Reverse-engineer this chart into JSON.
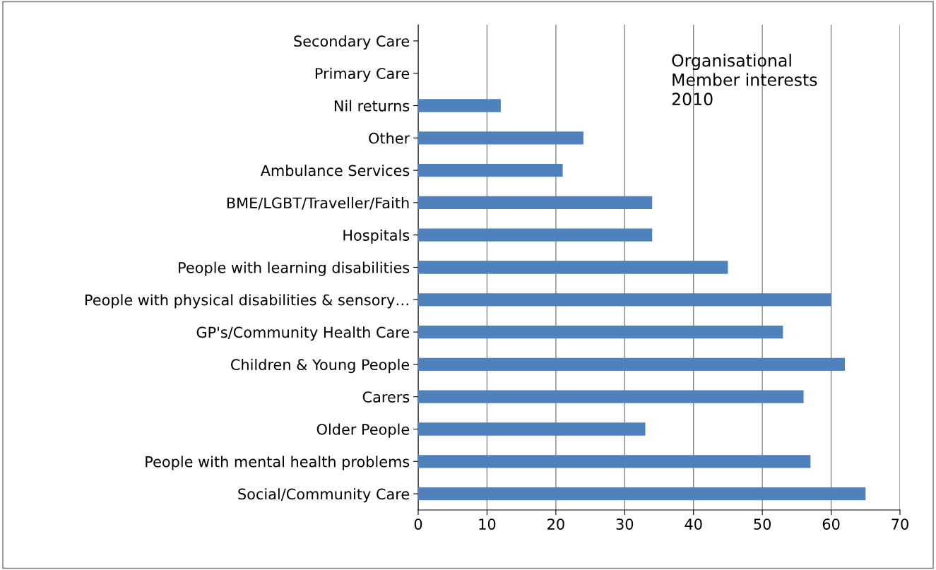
{
  "chart_data": {
    "type": "bar",
    "orientation": "horizontal",
    "categories": [
      "Secondary Care",
      "Primary Care",
      "Nil returns",
      "Other",
      "Ambulance Services",
      "BME/LGBT/Traveller/Faith",
      "Hospitals",
      "People with learning disabilities",
      "People with physical disabilities & sensory…",
      "GP's/Community Health Care",
      "Children & Young People",
      "Carers",
      "Older People",
      "People with mental health problems",
      "Social/Community Care"
    ],
    "values": [
      0,
      0,
      12,
      24,
      21,
      34,
      34,
      45,
      60,
      53,
      62,
      56,
      33,
      57,
      65
    ],
    "color": "#4f81bd",
    "xlim": [
      0,
      70
    ],
    "xticks": [
      0,
      10,
      20,
      30,
      40,
      50,
      60,
      70
    ],
    "grid": "x",
    "legend": false,
    "annotations": [
      "Organisational\nMember interests\n2010"
    ]
  }
}
